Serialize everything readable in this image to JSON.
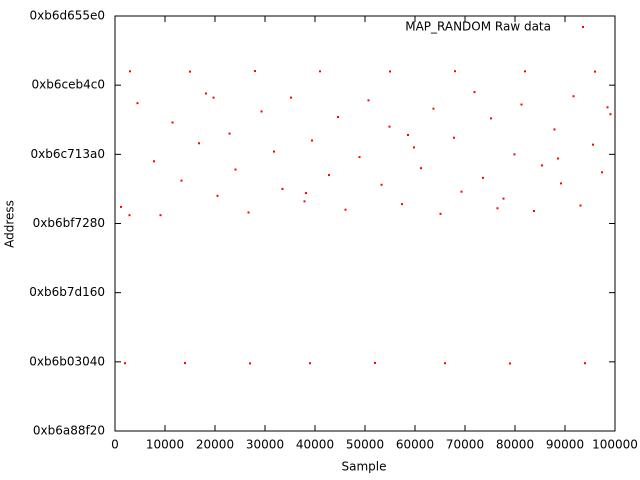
{
  "chart_data": {
    "type": "scatter",
    "xlabel": "Sample",
    "ylabel": "Address",
    "xlim": [
      0,
      100000
    ],
    "xticks": [
      0,
      10000,
      20000,
      30000,
      40000,
      50000,
      60000,
      70000,
      80000,
      90000,
      100000
    ],
    "ylim": [
      3064500000,
      3067500000
    ],
    "yticks": [
      {
        "value": 3064500000,
        "label": "0xb6a88f20"
      },
      {
        "value": 3065000000,
        "label": "0xb6b03040"
      },
      {
        "value": 3065500000,
        "label": "0xb6b7d160"
      },
      {
        "value": 3066000000,
        "label": "0xb6bf7280"
      },
      {
        "value": 3066500000,
        "label": "0xb6c713a0"
      },
      {
        "value": 3067000000,
        "label": "0xb6ceb4c0"
      },
      {
        "value": 3067500000,
        "label": "0xb6d655e0"
      }
    ],
    "legend": "top-right",
    "series": [
      {
        "name": "MAP_RANDOM Raw data",
        "color": "#ff0000",
        "x": [
          3000,
          15000,
          28000,
          41000,
          55000,
          68000,
          82000,
          96000,
          2000,
          14000,
          27000,
          39000,
          52000,
          66000,
          79000,
          94000,
          1200,
          4500,
          7800,
          9100,
          11500,
          13300,
          16800,
          18200,
          20500,
          22900,
          24100,
          26700,
          29300,
          31800,
          33500,
          35200,
          37900,
          39400,
          42800,
          44600,
          46100,
          48900,
          50700,
          53300,
          54900,
          57400,
          59800,
          61200,
          63700,
          65100,
          67800,
          69300,
          71900,
          73600,
          75200,
          77700,
          79900,
          81300,
          83800,
          85400,
          87900,
          89200,
          91700,
          93100,
          95600,
          97400,
          99100,
          2900,
          19700,
          38200,
          58600,
          76500,
          88600,
          98500
        ],
        "values": [
          3067100000,
          3067098000,
          3067102000,
          3067100000,
          3067099000,
          3067101000,
          3067100000,
          3067098000,
          3064990000,
          3064991000,
          3064989000,
          3064990000,
          3064992000,
          3064990000,
          3064988000,
          3064990000,
          3066120000,
          3066870000,
          3066450000,
          3066060000,
          3066730000,
          3066310000,
          3066580000,
          3066940000,
          3066200000,
          3066650000,
          3066390000,
          3066080000,
          3066810000,
          3066520000,
          3066250000,
          3066910000,
          3066160000,
          3066600000,
          3066350000,
          3066770000,
          3066100000,
          3066480000,
          3066890000,
          3066280000,
          3066700000,
          3066140000,
          3066550000,
          3066400000,
          3066830000,
          3066070000,
          3066620000,
          3066230000,
          3066950000,
          3066330000,
          3066760000,
          3066180000,
          3066500000,
          3066860000,
          3066090000,
          3066420000,
          3066680000,
          3066290000,
          3066920000,
          3066130000,
          3066570000,
          3066370000,
          3066790000,
          3066060000,
          3066910000,
          3066220000,
          3066640000,
          3066110000,
          3066470000,
          3066840000
        ]
      }
    ]
  }
}
